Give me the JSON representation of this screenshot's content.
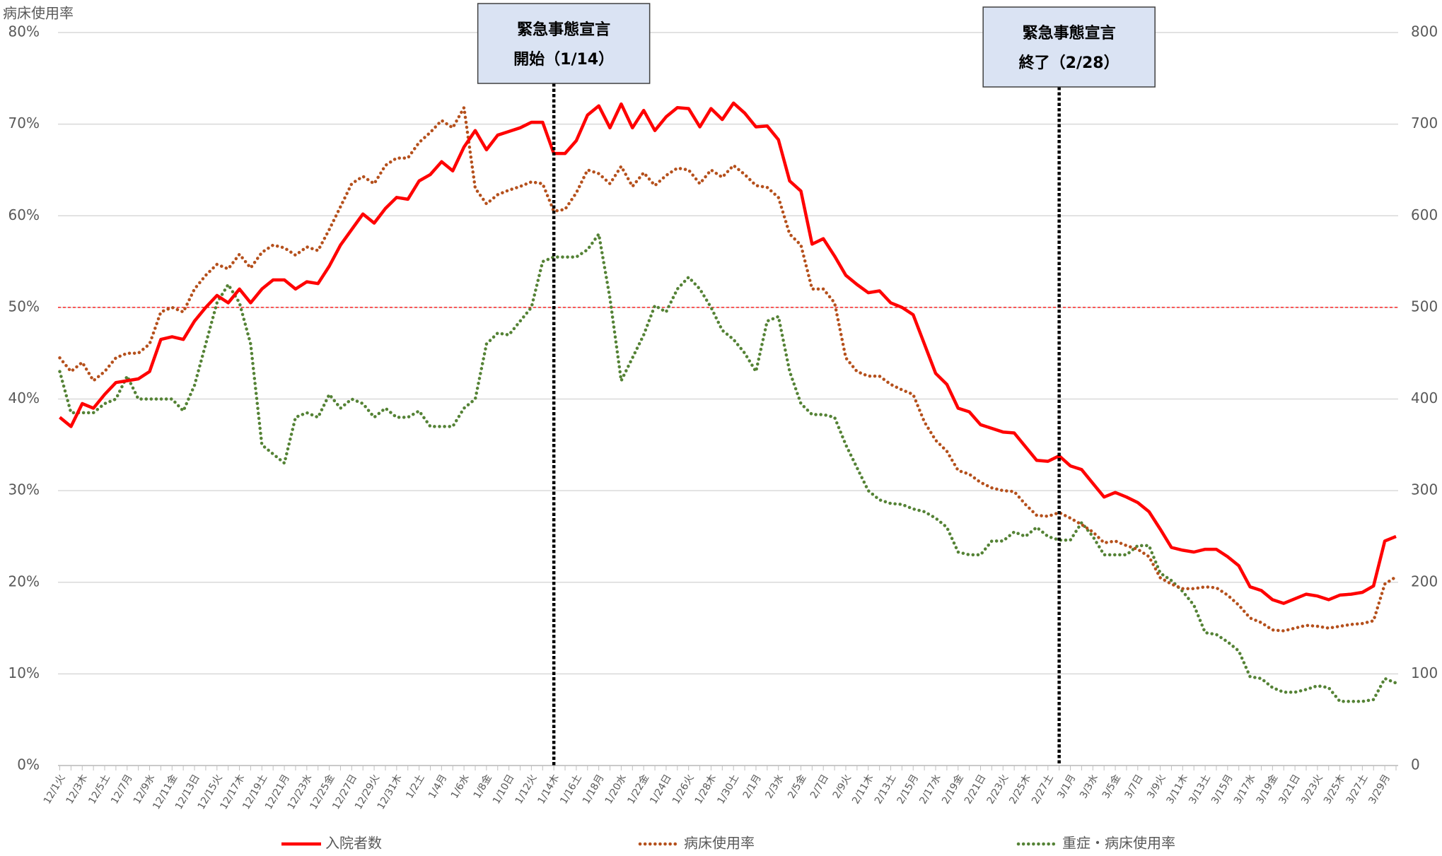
{
  "chart_data": {
    "type": "line",
    "y_label": "病床使用率",
    "categories": [
      "12/1火",
      null,
      "12/3木",
      null,
      "12/5土",
      null,
      "12/7月",
      null,
      "12/9水",
      null,
      "12/11金",
      null,
      "12/13日",
      null,
      "12/15火",
      null,
      "12/17木",
      null,
      "12/19土",
      null,
      "12/21月",
      null,
      "12/23水",
      null,
      "12/25金",
      null,
      "12/27日",
      null,
      "12/29火",
      null,
      "12/31木",
      null,
      "1/2土",
      null,
      "1/4月",
      null,
      "1/6水",
      null,
      "1/8金",
      null,
      "1/10日",
      null,
      "1/12火",
      null,
      "1/14木",
      null,
      "1/16土",
      null,
      "1/18月",
      null,
      "1/20水",
      null,
      "1/22金",
      null,
      "1/24日",
      null,
      "1/26火",
      null,
      "1/28木",
      null,
      "1/30土",
      null,
      "2/1月",
      null,
      "2/3水",
      null,
      "2/5金",
      null,
      "2/7日",
      null,
      "2/9火",
      null,
      "2/11木",
      null,
      "2/13土",
      null,
      "2/15月",
      null,
      "2/17水",
      null,
      "2/19金",
      null,
      "2/21日",
      null,
      "2/23火",
      null,
      "2/25木",
      null,
      "2/27土",
      null,
      "3/1月",
      null,
      "3/3水",
      null,
      "3/5金",
      null,
      "3/7日",
      null,
      "3/9火",
      null,
      "3/11木",
      null,
      "3/13土",
      null,
      "3/15月",
      null,
      "3/17水",
      null,
      "3/19金",
      null,
      "3/21日",
      null,
      "3/23火",
      null,
      "3/25木",
      null,
      "3/27土",
      null,
      "3/29月",
      null
    ],
    "series": [
      {
        "name": "入院者数",
        "color": "#ff0000",
        "style": "solid",
        "axis": "y2",
        "values": [
          380,
          370,
          395,
          390,
          405,
          418,
          420,
          422,
          430,
          465,
          468,
          465,
          485,
          500,
          513,
          505,
          520,
          505,
          520,
          530,
          530,
          520,
          528,
          526,
          545,
          568,
          585,
          602,
          592,
          608,
          620,
          618,
          638,
          645,
          659,
          649,
          675,
          693,
          672,
          688,
          692,
          696,
          702,
          702,
          668,
          668,
          682,
          710,
          720,
          696,
          722,
          696,
          715,
          693,
          708,
          718,
          717,
          697,
          717,
          705,
          723,
          712,
          697,
          698,
          683,
          638,
          627,
          569,
          575,
          556,
          535,
          525,
          516,
          518,
          505,
          500,
          492,
          460,
          428,
          416,
          390,
          386,
          372,
          368,
          364,
          363,
          348,
          333,
          332,
          338,
          327,
          323,
          308,
          293,
          298,
          293,
          287,
          277,
          258,
          238,
          235,
          233,
          236,
          236,
          228,
          218,
          195,
          191,
          181,
          177,
          182,
          187,
          185,
          181,
          186,
          187,
          189,
          196,
          245,
          250
        ]
      },
      {
        "name": "病床使用率",
        "color": "#b5501c",
        "style": "dotted",
        "values": [
          44.5,
          43,
          44,
          42,
          43,
          44.5,
          45,
          45,
          46,
          49.5,
          50,
          49.5,
          52,
          53.5,
          54.7,
          54.2,
          55.8,
          54.3,
          56,
          56.8,
          56.5,
          55.7,
          56.6,
          56.2,
          58.5,
          61,
          63.5,
          64.3,
          63.5,
          65.5,
          66.3,
          66.3,
          68,
          69.1,
          70.4,
          69.6,
          71.8,
          63,
          61.3,
          62.3,
          62.8,
          63.2,
          63.7,
          63.5,
          60.5,
          60.7,
          62.5,
          65,
          64.6,
          63.5,
          65.4,
          63.2,
          64.7,
          63.3,
          64.4,
          65.2,
          65,
          63.5,
          65,
          64.2,
          65.5,
          64.5,
          63.3,
          63.1,
          62,
          58,
          56.8,
          52,
          52,
          50.5,
          44.5,
          43,
          42.5,
          42.5,
          41.6,
          41,
          40.5,
          37.5,
          35.5,
          34.3,
          32.2,
          31.8,
          30.9,
          30.3,
          30,
          29.9,
          28.5,
          27.3,
          27.2,
          27.6,
          27,
          26.3,
          25.5,
          24.3,
          24.5,
          24,
          23.6,
          22.8,
          20.5,
          19.8,
          19.3,
          19.3,
          19.5,
          19.4,
          18.6,
          17.5,
          16.1,
          15.6,
          14.8,
          14.7,
          15,
          15.3,
          15.2,
          15,
          15.2,
          15.4,
          15.5,
          15.8,
          19.8,
          20.6
        ]
      },
      {
        "name": "重症・病床使用率",
        "color": "#548235",
        "style": "dotted",
        "values": [
          43,
          38.5,
          38.5,
          38.5,
          39.5,
          40,
          42.5,
          40,
          40,
          40,
          40,
          38.7,
          41.5,
          46,
          50.5,
          52.5,
          50.5,
          46,
          35,
          34,
          33,
          38,
          38.5,
          38,
          40.5,
          39,
          40,
          39.5,
          38,
          39,
          38,
          38,
          38.7,
          37,
          37,
          37,
          39,
          40,
          46,
          47.2,
          47,
          48.5,
          50,
          55,
          55.5,
          55.5,
          55.5,
          56.3,
          58,
          51,
          42,
          44.5,
          47,
          50.2,
          49.5,
          52,
          53.3,
          52,
          50,
          47.5,
          46.5,
          45,
          43,
          48.5,
          49,
          43,
          39.5,
          38.3,
          38.3,
          38,
          35,
          32.5,
          30,
          29,
          28.6,
          28.5,
          28,
          27.7,
          27,
          26,
          23.3,
          23,
          23,
          24.5,
          24.5,
          25.5,
          25,
          26,
          25,
          24.6,
          24.6,
          26.5,
          25,
          23,
          23,
          23,
          24,
          24,
          21,
          20.2,
          19,
          17.5,
          14.5,
          14.3,
          13.5,
          12.5,
          9.7,
          9.5,
          8.5,
          8,
          8,
          8.3,
          8.7,
          8.5,
          7,
          7,
          7,
          7.2,
          9.5,
          9
        ]
      }
    ],
    "ylim": [
      0,
      80
    ],
    "yticks": [
      {
        "value": 0,
        "label": "0%"
      },
      {
        "value": 10,
        "label": "10%"
      },
      {
        "value": 20,
        "label": "20%"
      },
      {
        "value": 30,
        "label": "30%"
      },
      {
        "value": 40,
        "label": "40%"
      },
      {
        "value": 50,
        "label": "50%"
      },
      {
        "value": 60,
        "label": "60%"
      },
      {
        "value": 70,
        "label": "70%"
      },
      {
        "value": 80,
        "label": "80%"
      }
    ],
    "y2lim": [
      0,
      800
    ],
    "y2ticks": [
      0,
      100,
      200,
      300,
      400,
      500,
      600,
      700,
      800
    ],
    "grid": true,
    "reference_line": {
      "value": 50,
      "color": "#ff0000"
    },
    "annotations": [
      {
        "lines": [
          "緊急事態宣言",
          "開始（1/14）"
        ],
        "x": 44
      },
      {
        "lines": [
          "緊急事態宣言",
          "終了（2/28）"
        ],
        "x": 89
      }
    ],
    "legend": "bottom"
  }
}
